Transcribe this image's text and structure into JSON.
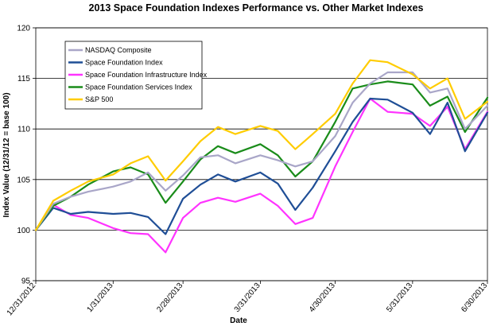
{
  "chart_data": {
    "type": "line",
    "title": "2013 Space Foundation Indexes Performance vs. Other Market Indexes",
    "xlabel": "Date",
    "ylabel": "Index Value (12/31/12 = base 100)",
    "ylim": [
      95,
      120
    ],
    "yticks": [
      "95",
      "100",
      "105",
      "110",
      "115",
      "120"
    ],
    "xticks": [
      "12/31/2012",
      "1/31/2013",
      "2/28/2013",
      "3/31/2013",
      "4/30/2013",
      "5/31/2013",
      "6/30/2013"
    ],
    "grid": "horizontal",
    "legend_position": "top-left",
    "x": [
      "12/31/2012",
      "1/7/2013",
      "1/14/2013",
      "1/21/2013",
      "1/31/2013",
      "2/7/2013",
      "2/14/2013",
      "2/21/2013",
      "2/28/2013",
      "3/7/2013",
      "3/14/2013",
      "3/21/2013",
      "3/31/2013",
      "4/7/2013",
      "4/14/2013",
      "4/21/2013",
      "4/30/2013",
      "5/7/2013",
      "5/14/2013",
      "5/21/2013",
      "5/31/2013",
      "6/7/2013",
      "6/14/2013",
      "6/21/2013",
      "6/30/2013"
    ],
    "series": [
      {
        "name": "NASDAQ Composite",
        "color": "#A9A6C8",
        "values": [
          100,
          102.6,
          103.3,
          103.8,
          104.3,
          104.8,
          105.7,
          103.9,
          105.4,
          107.2,
          107.4,
          106.6,
          107.4,
          106.9,
          106.3,
          106.8,
          109.3,
          112.6,
          114.5,
          115.6,
          115.6,
          113.6,
          114.0,
          110.0,
          112.3
        ]
      },
      {
        "name": "Space Foundation Index",
        "color": "#1F4E96",
        "values": [
          100,
          102.2,
          101.6,
          101.8,
          101.6,
          101.7,
          101.3,
          99.6,
          103.1,
          104.5,
          105.5,
          104.8,
          105.7,
          104.6,
          102.0,
          104.2,
          107.8,
          110.7,
          113.0,
          112.9,
          111.6,
          109.5,
          112.6,
          107.8,
          111.6
        ]
      },
      {
        "name": "Space Foundation Infrastructure Index",
        "color": "#FF33FF",
        "values": [
          100,
          102.5,
          101.5,
          101.2,
          100.2,
          99.7,
          99.6,
          97.8,
          101.2,
          102.7,
          103.2,
          102.8,
          103.6,
          102.4,
          100.6,
          101.2,
          106.3,
          109.7,
          113.0,
          111.7,
          111.5,
          110.3,
          112.2,
          108.0,
          111.7
        ]
      },
      {
        "name": "Space Foundation Services Index",
        "color": "#1A8C1A",
        "values": [
          100,
          102.4,
          103.3,
          104.5,
          105.8,
          106.2,
          105.5,
          102.7,
          104.8,
          107.0,
          108.3,
          107.6,
          108.5,
          107.4,
          105.3,
          106.8,
          110.7,
          114.0,
          114.4,
          114.7,
          114.4,
          112.3,
          113.2,
          109.7,
          113.1
        ]
      },
      {
        "name": "S&P 500",
        "color": "#FFCC00",
        "values": [
          100,
          102.9,
          103.9,
          104.8,
          105.5,
          106.6,
          107.3,
          104.9,
          106.8,
          108.8,
          110.2,
          109.5,
          110.3,
          109.8,
          108.0,
          109.5,
          111.5,
          114.5,
          116.8,
          116.6,
          115.4,
          114.0,
          115.0,
          111.0,
          112.7
        ]
      }
    ]
  }
}
